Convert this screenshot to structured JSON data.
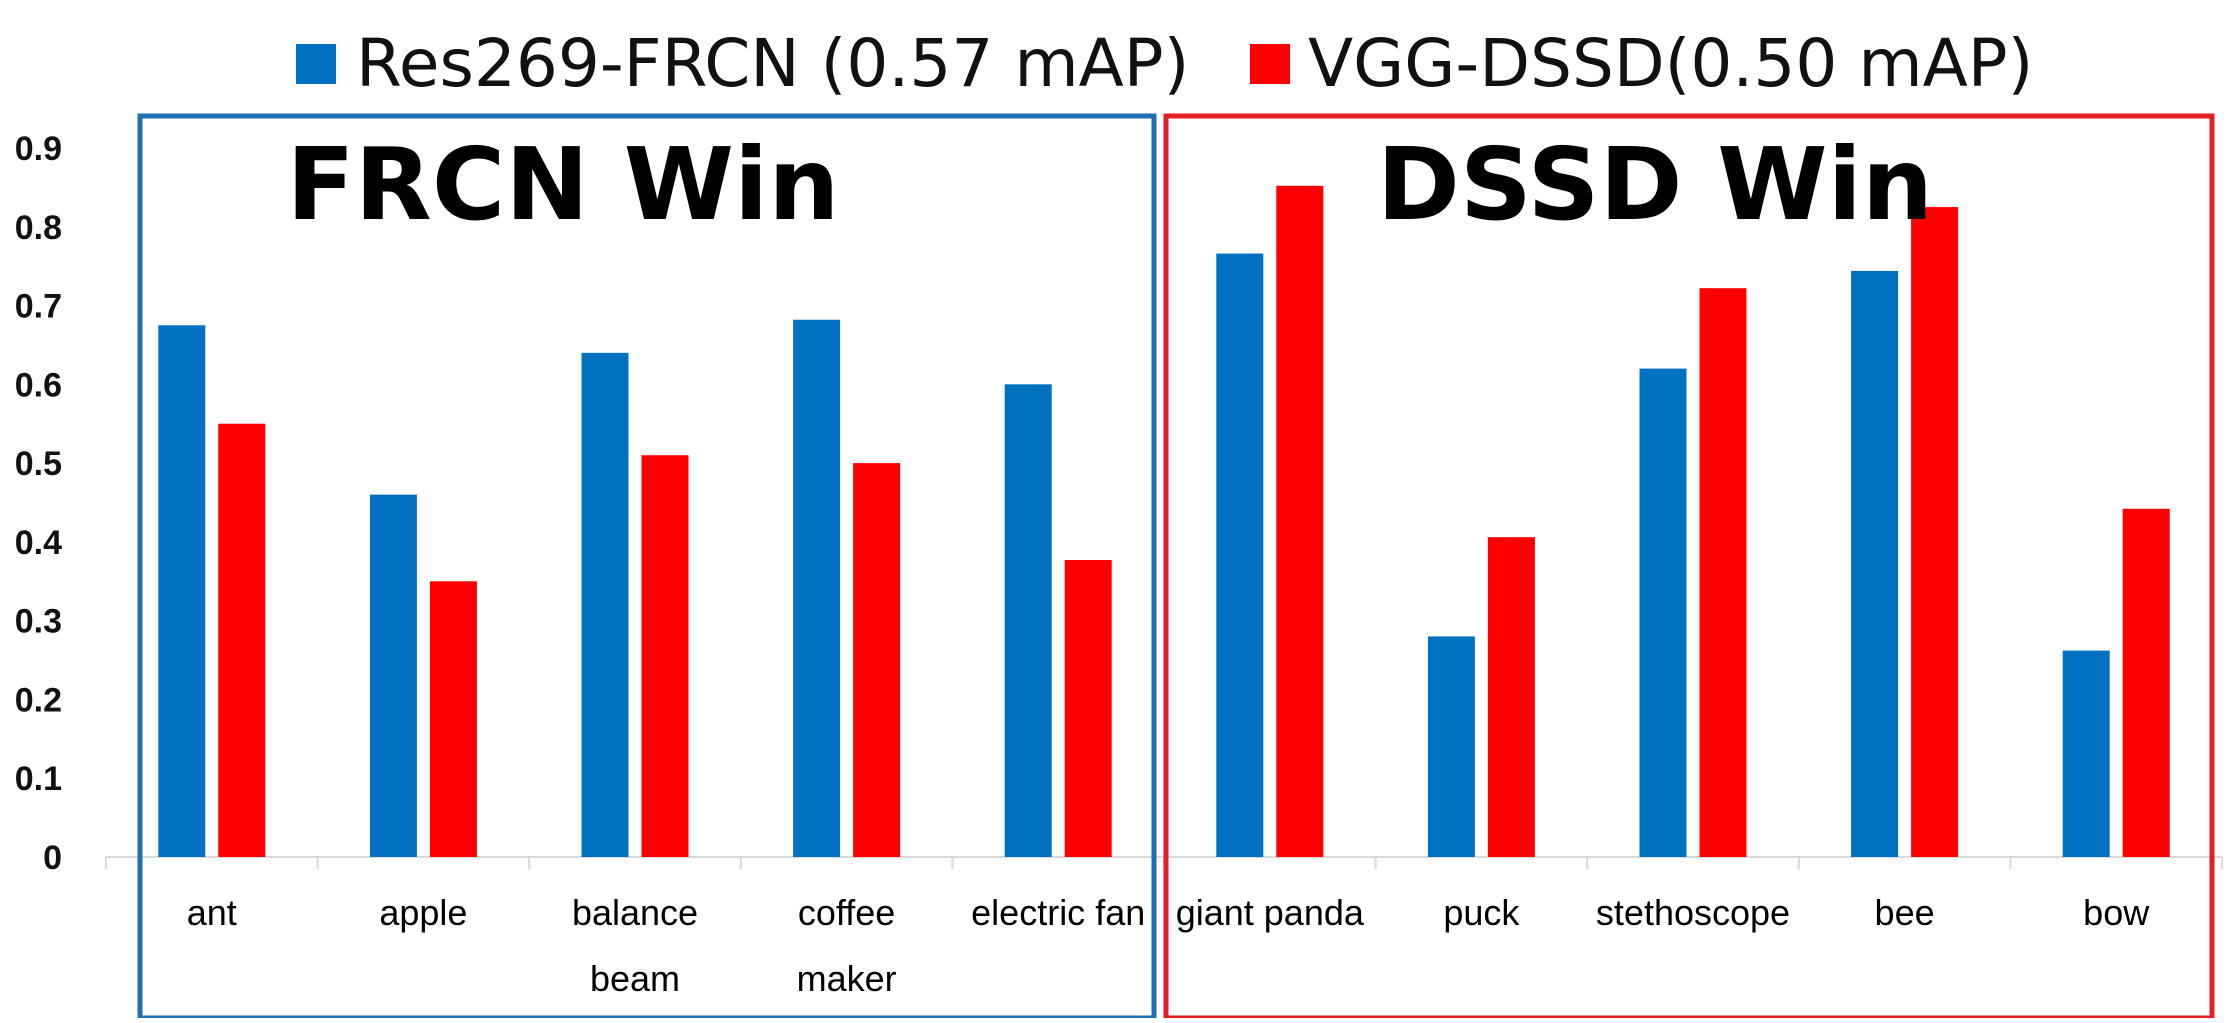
{
  "chart_data": {
    "type": "bar",
    "categories": [
      [
        "ant"
      ],
      [
        "apple"
      ],
      [
        "balance",
        "beam"
      ],
      [
        "coffee",
        "maker"
      ],
      [
        "electric fan"
      ],
      [
        "giant panda"
      ],
      [
        "puck"
      ],
      [
        "stethoscope"
      ],
      [
        "bee"
      ],
      [
        "bow"
      ]
    ],
    "series": [
      {
        "name": "Res269-FRCN (0.57 mAP)",
        "color": "#0070c0",
        "values": [
          0.675,
          0.46,
          0.64,
          0.682,
          0.6,
          0.766,
          0.28,
          0.62,
          0.744,
          0.262
        ]
      },
      {
        "name": "VGG-DSSD(0.50 mAP)",
        "color": "#ff0000",
        "values": [
          0.55,
          0.35,
          0.51,
          0.5,
          0.377,
          0.852,
          0.406,
          0.722,
          0.825,
          0.442
        ]
      }
    ],
    "y_ticks": [
      "0",
      "0.1",
      "0.2",
      "0.3",
      "0.4",
      "0.5",
      "0.6",
      "0.7",
      "0.8",
      "0.9"
    ],
    "ylim": [
      0,
      0.9
    ],
    "grid": false,
    "legend_position": "top",
    "groups": [
      {
        "title": "FRCN Win",
        "color": "#1f6fb5",
        "categories": [
          "ant",
          "apple",
          "balance beam",
          "coffee maker",
          "electric fan"
        ]
      },
      {
        "title": "DSSD Win",
        "color": "#e31e24",
        "categories": [
          "giant panda",
          "puck",
          "stethoscope",
          "bee",
          "bow"
        ]
      }
    ]
  }
}
